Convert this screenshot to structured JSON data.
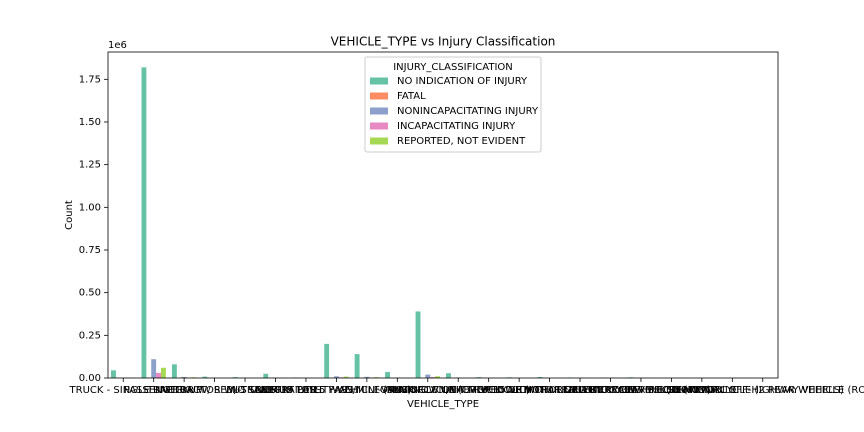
{
  "chart_data": {
    "type": "bar",
    "title": "VEHICLE_TYPE vs Injury Classification",
    "xlabel": "VEHICLE_TYPE",
    "ylabel": "Count",
    "y_offset_label": "1e6",
    "legend_title": "INJURY_CLASSIFICATION",
    "legend": "upper center",
    "categories": [
      "TRUCK - SINGLE UNIT",
      "PASSENGER",
      "PICKUP",
      "TRACTOR W/ SEMI-TRAILER",
      "TRACTOR W/O SEMI-TRAILER",
      "BUS OVER 15 PASS.",
      "BUS UP TO 15 PASS.",
      "SPORT UTILITY VEHICLE (SUV)",
      "VAN/MINI-VAN",
      "OTHER",
      "UNKNOWN/NA",
      "MOTORCYCLE (OVER 150CC)",
      "SINGLE UNIT TRUCK WITH TRAILER",
      "OTHER VEHICLE WITH TRAILER",
      "MOPED OR MOTORIZED BICYCLE",
      "MOTOR DRIVEN CYCLE",
      "AUTOCYCLE",
      "ALL-TERRAIN VEHICLE (ATV)",
      "FARM EQUIPMENT",
      "SNOWMOBILE",
      "3-WHEELED MOTORCYCLE (2 REAR WHEELS)",
      "RECREATIONAL OFF-HIGHWAY VEHICLE (ROV)"
    ],
    "series": [
      {
        "name": "NO INDICATION OF INJURY",
        "color": "#66c2a5",
        "values": [
          0.045,
          1.82,
          0.08,
          0.008,
          0.005,
          0.025,
          0.003,
          0.2,
          0.14,
          0.035,
          0.39,
          0.028,
          0.005,
          0.004,
          0.006,
          0.003,
          0.002,
          0.004,
          0.001,
          0.001,
          0.001,
          0.001
        ]
      },
      {
        "name": "FATAL",
        "color": "#fc8d62",
        "values": [
          0.0003,
          0.0015,
          0.0002,
          0.0001,
          0.0001,
          0.0001,
          0.0001,
          0.0003,
          0.0002,
          0.0001,
          0.0005,
          0.0001,
          0,
          0,
          0,
          0,
          0,
          0,
          0,
          0,
          0,
          0
        ]
      },
      {
        "name": "NONINCAPACITATING INJURY",
        "color": "#8da0cb",
        "values": [
          0.002,
          0.11,
          0.006,
          0.001,
          0.001,
          0.002,
          0.0005,
          0.01,
          0.007,
          0.002,
          0.02,
          0.002,
          0.0005,
          0.0003,
          0.0005,
          0.0002,
          0.0002,
          0.0003,
          0,
          0,
          0,
          0
        ]
      },
      {
        "name": "INCAPACITATING INJURY",
        "color": "#e78ac3",
        "values": [
          0.0008,
          0.03,
          0.002,
          0.0003,
          0.0003,
          0.0006,
          0.0002,
          0.004,
          0.003,
          0.0008,
          0.006,
          0.0006,
          0.0002,
          0.0001,
          0.0002,
          0.0001,
          0.0001,
          0.0001,
          0,
          0,
          0,
          0
        ]
      },
      {
        "name": "REPORTED, NOT EVIDENT",
        "color": "#a6d854",
        "values": [
          0.0015,
          0.06,
          0.004,
          0.0005,
          0.0005,
          0.001,
          0.0003,
          0.008,
          0.005,
          0.001,
          0.01,
          0.001,
          0.0003,
          0.0002,
          0.0003,
          0.0001,
          0.0001,
          0.0002,
          0,
          0,
          0,
          0
        ]
      }
    ],
    "ylim": [
      0,
      1.91
    ],
    "yticks": [
      {
        "value": 0,
        "label": "0.00"
      },
      {
        "value": 0.25,
        "label": "0.25"
      },
      {
        "value": 0.5,
        "label": "0.50"
      },
      {
        "value": 0.75,
        "label": "0.75"
      },
      {
        "value": 1,
        "label": "1.00"
      },
      {
        "value": 1.25,
        "label": "1.25"
      },
      {
        "value": 1.5,
        "label": "1.50"
      },
      {
        "value": 1.75,
        "label": "1.75"
      }
    ],
    "grid": false
  }
}
